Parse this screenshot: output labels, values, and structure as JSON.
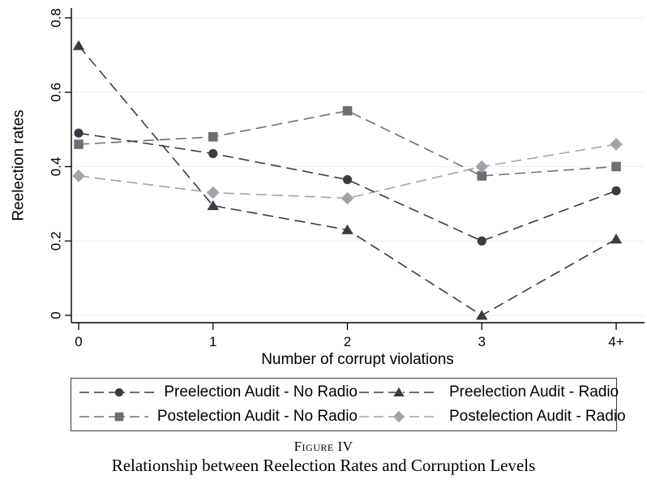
{
  "chart_data": {
    "type": "line",
    "x": [
      "0",
      "1",
      "2",
      "3",
      "4+"
    ],
    "xlabel": "Number of corrupt violations",
    "ylabel": "Reelection rates",
    "ylim": [
      0,
      0.8
    ],
    "yticks": [
      0,
      0.2,
      0.4,
      0.6,
      0.8
    ],
    "ytick_labels": [
      "0",
      "0.2",
      "0.4",
      "0.6",
      "0.8"
    ],
    "grid": true,
    "legend_position": "bottom",
    "line_style": "dashed",
    "series": [
      {
        "name": "Preelection Audit - No Radio",
        "marker": "circle",
        "color": "#3b3b44",
        "values": [
          0.49,
          0.435,
          0.365,
          0.2,
          0.335
        ]
      },
      {
        "name": "Preelection Audit - Radio",
        "marker": "triangle",
        "color": "#3b3b44",
        "values": [
          0.725,
          0.295,
          0.23,
          0.0,
          0.205
        ]
      },
      {
        "name": "Postelection Audit - No Radio",
        "marker": "square",
        "color": "#6e6e78",
        "values": [
          0.46,
          0.48,
          0.55,
          0.375,
          0.4
        ]
      },
      {
        "name": "Postelection Audit - Radio",
        "marker": "diamond",
        "color": "#a1a3ab",
        "values": [
          0.375,
          0.33,
          0.315,
          0.4,
          0.46
        ]
      }
    ],
    "colors": {
      "grid": "#f0f0f1",
      "axis": "#000000"
    }
  },
  "caption": {
    "figure_label": "Figure IV",
    "title": "Relationship between Reelection Rates and Corruption Levels"
  }
}
